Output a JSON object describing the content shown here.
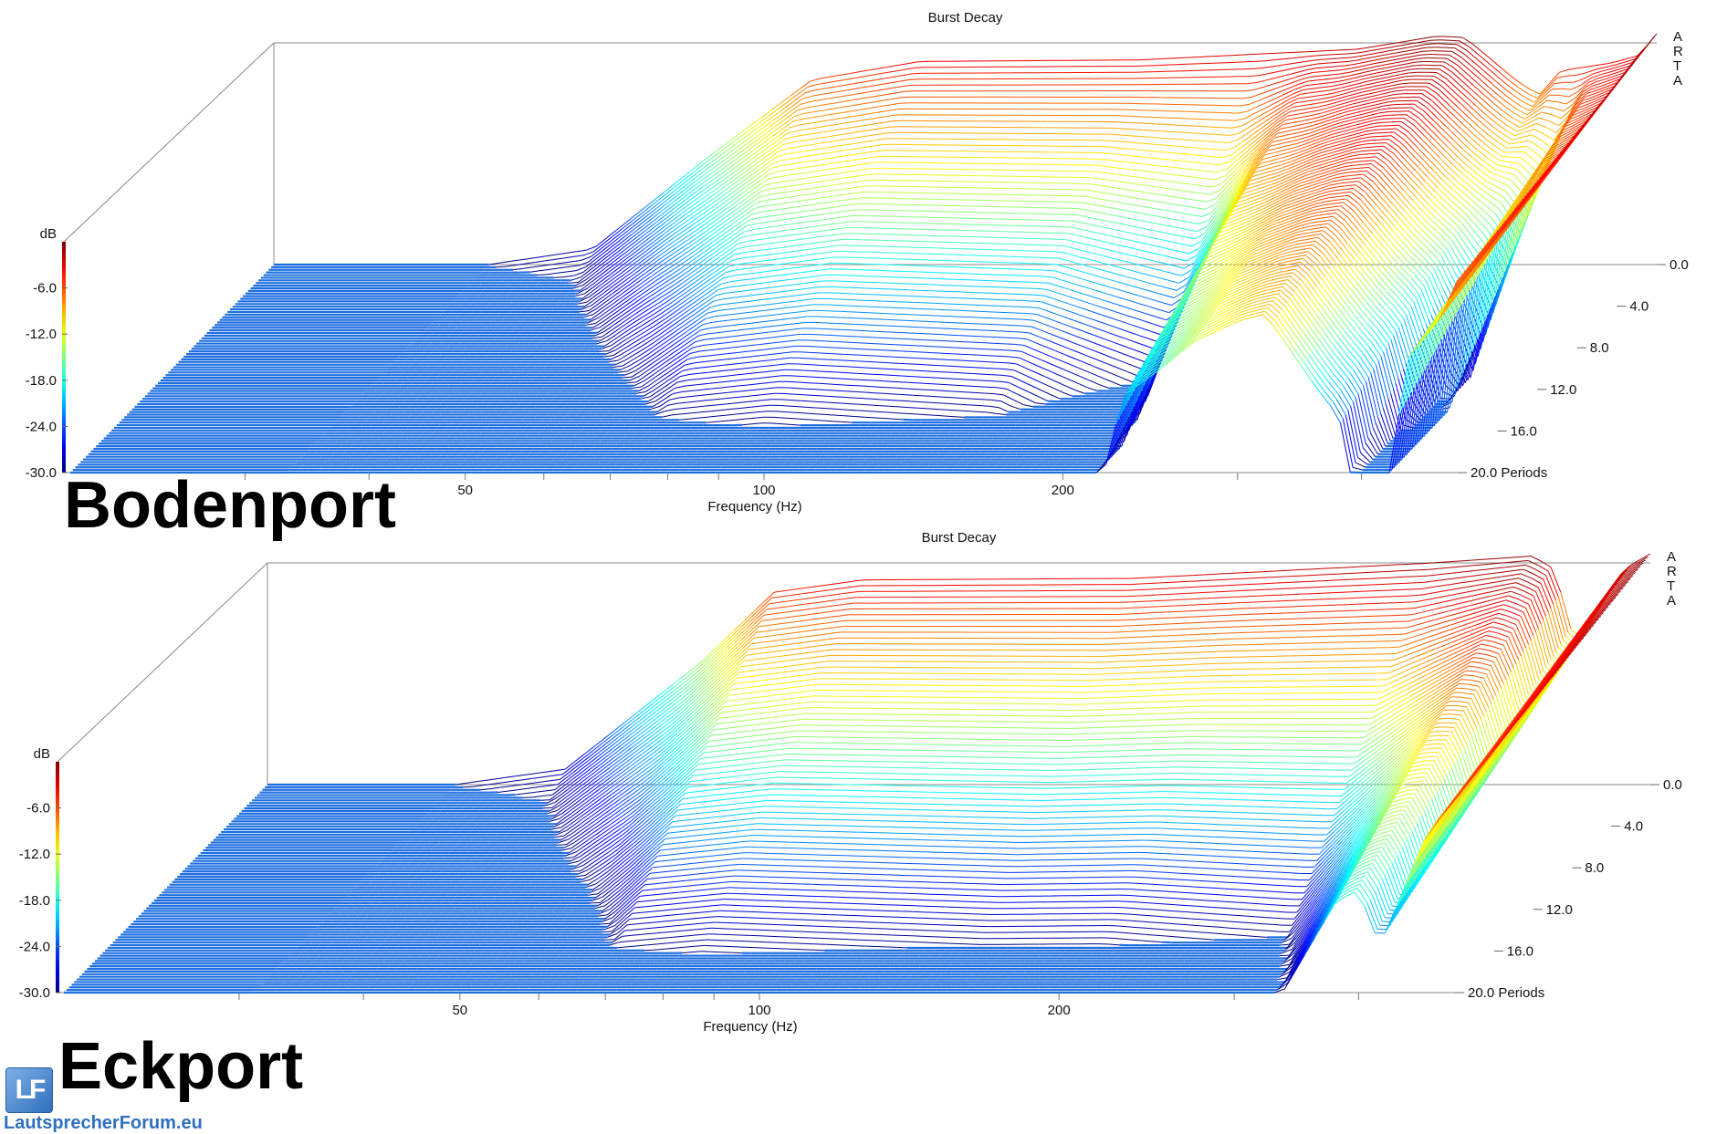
{
  "watermark": {
    "text": "LautsprecherForum.eu",
    "icon": "lf-logo-icon"
  },
  "chart_data": [
    {
      "type": "waterfall-3d",
      "panel_label": "Bodenport",
      "title": "Burst Decay",
      "xlabel": "Frequency (Hz)",
      "x_scale": "log",
      "x_ticks": [
        {
          "value": 50,
          "label": "50"
        },
        {
          "value": 100,
          "label": "100"
        },
        {
          "value": 200,
          "label": "200"
        }
      ],
      "xlim": [
        20,
        500
      ],
      "z_label": "dB",
      "z_ticks": [
        "-6.0",
        "-12.0",
        "-18.0",
        "-24.0",
        "-30.0"
      ],
      "zlim": [
        -30,
        0
      ],
      "depth_ticks": [
        "0.0",
        "4.0",
        "8.0",
        "12.0",
        "16.0",
        "20.0 Periods"
      ],
      "depth_range": [
        0,
        20
      ],
      "brand_letters": [
        "A",
        "R",
        "T",
        "A"
      ],
      "colormap": "jet",
      "profile_db": [
        [
          33,
          -30
        ],
        [
          42,
          -28
        ],
        [
          55,
          -16
        ],
        [
          70,
          -6
        ],
        [
          90,
          -3.6
        ],
        [
          150,
          -3.4
        ],
        [
          250,
          -2
        ],
        [
          300,
          -0.3
        ],
        [
          320,
          -0.5
        ],
        [
          360,
          -6
        ],
        [
          380,
          -8
        ],
        [
          400,
          -4.8
        ],
        [
          450,
          -3.8
        ],
        [
          480,
          -2.8
        ],
        [
          500,
          0
        ]
      ],
      "decay_rate": [
        [
          33,
          0.22
        ],
        [
          60,
          0.32
        ],
        [
          150,
          0.37
        ],
        [
          200,
          0.5
        ],
        [
          230,
          0.18
        ],
        [
          270,
          0.12
        ],
        [
          320,
          0.09
        ],
        [
          380,
          0.15
        ],
        [
          420,
          0.5
        ],
        [
          440,
          0.12
        ],
        [
          500,
          0.05
        ]
      ]
    },
    {
      "type": "waterfall-3d",
      "panel_label": "Eckport",
      "title": "Burst Decay",
      "xlabel": "Frequency (Hz)",
      "x_scale": "log",
      "x_ticks": [
        {
          "value": 50,
          "label": "50"
        },
        {
          "value": 100,
          "label": "100"
        },
        {
          "value": 200,
          "label": "200"
        }
      ],
      "xlim": [
        20,
        500
      ],
      "z_label": "dB",
      "z_ticks": [
        "-6.0",
        "-12.0",
        "-18.0",
        "-24.0",
        "-30.0"
      ],
      "zlim": [
        -30,
        0
      ],
      "depth_ticks": [
        "0.0",
        "4.0",
        "8.0",
        "12.0",
        "16.0",
        "20.0 Periods"
      ],
      "depth_range": [
        0,
        20
      ],
      "brand_letters": [
        "A",
        "R",
        "T",
        "A"
      ],
      "colormap": "jet",
      "profile_db": [
        [
          31,
          -30
        ],
        [
          40,
          -28
        ],
        [
          55,
          -14
        ],
        [
          65,
          -5
        ],
        [
          80,
          -3.4
        ],
        [
          150,
          -3.2
        ],
        [
          300,
          -1.2
        ],
        [
          380,
          -0.3
        ],
        [
          400,
          -2
        ],
        [
          420,
          -12
        ],
        [
          440,
          -8
        ],
        [
          470,
          -2
        ],
        [
          500,
          0
        ]
      ],
      "decay_rate": [
        [
          31,
          0.22
        ],
        [
          60,
          0.32
        ],
        [
          200,
          0.36
        ],
        [
          300,
          0.4
        ],
        [
          380,
          0.18
        ],
        [
          420,
          0.12
        ],
        [
          460,
          0.08
        ],
        [
          500,
          0.05
        ]
      ]
    }
  ]
}
